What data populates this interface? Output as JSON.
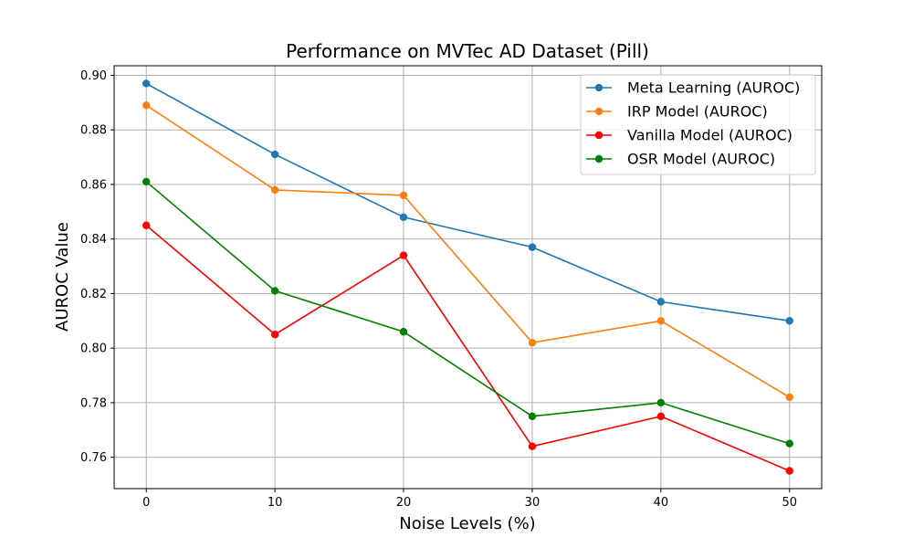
{
  "chart_data": {
    "type": "line",
    "title": "Performance on MVTec AD Dataset (Pill)",
    "xlabel": "Noise Levels (%)",
    "ylabel": "AUROC Value",
    "x": [
      0,
      10,
      20,
      30,
      40,
      50
    ],
    "xlim": [
      -2.5,
      52.5
    ],
    "ylim": [
      0.7485,
      0.9035
    ],
    "yticks": [
      0.76,
      0.78,
      0.8,
      0.82,
      0.84,
      0.86,
      0.88,
      0.9
    ],
    "ytick_labels": [
      "0.76",
      "0.78",
      "0.80",
      "0.82",
      "0.84",
      "0.86",
      "0.88",
      "0.90"
    ],
    "xtick_labels": [
      "0",
      "10",
      "20",
      "30",
      "40",
      "50"
    ],
    "grid": true,
    "legend_position": "top-right",
    "series": [
      {
        "name": "Meta Learning (AUROC)",
        "color": "#1f77b4",
        "values": [
          0.897,
          0.871,
          0.848,
          0.837,
          0.817,
          0.81
        ]
      },
      {
        "name": "IRP Model (AUROC)",
        "color": "#ff7f0e",
        "values": [
          0.889,
          0.858,
          0.856,
          0.802,
          0.81,
          0.782
        ]
      },
      {
        "name": "Vanilla Model (AUROC)",
        "color": "#ff0000",
        "values": [
          0.845,
          0.805,
          0.834,
          0.764,
          0.775,
          0.755
        ]
      },
      {
        "name": "OSR Model (AUROC)",
        "color": "#008000",
        "values": [
          0.861,
          0.821,
          0.806,
          0.775,
          0.78,
          0.765
        ]
      }
    ]
  }
}
